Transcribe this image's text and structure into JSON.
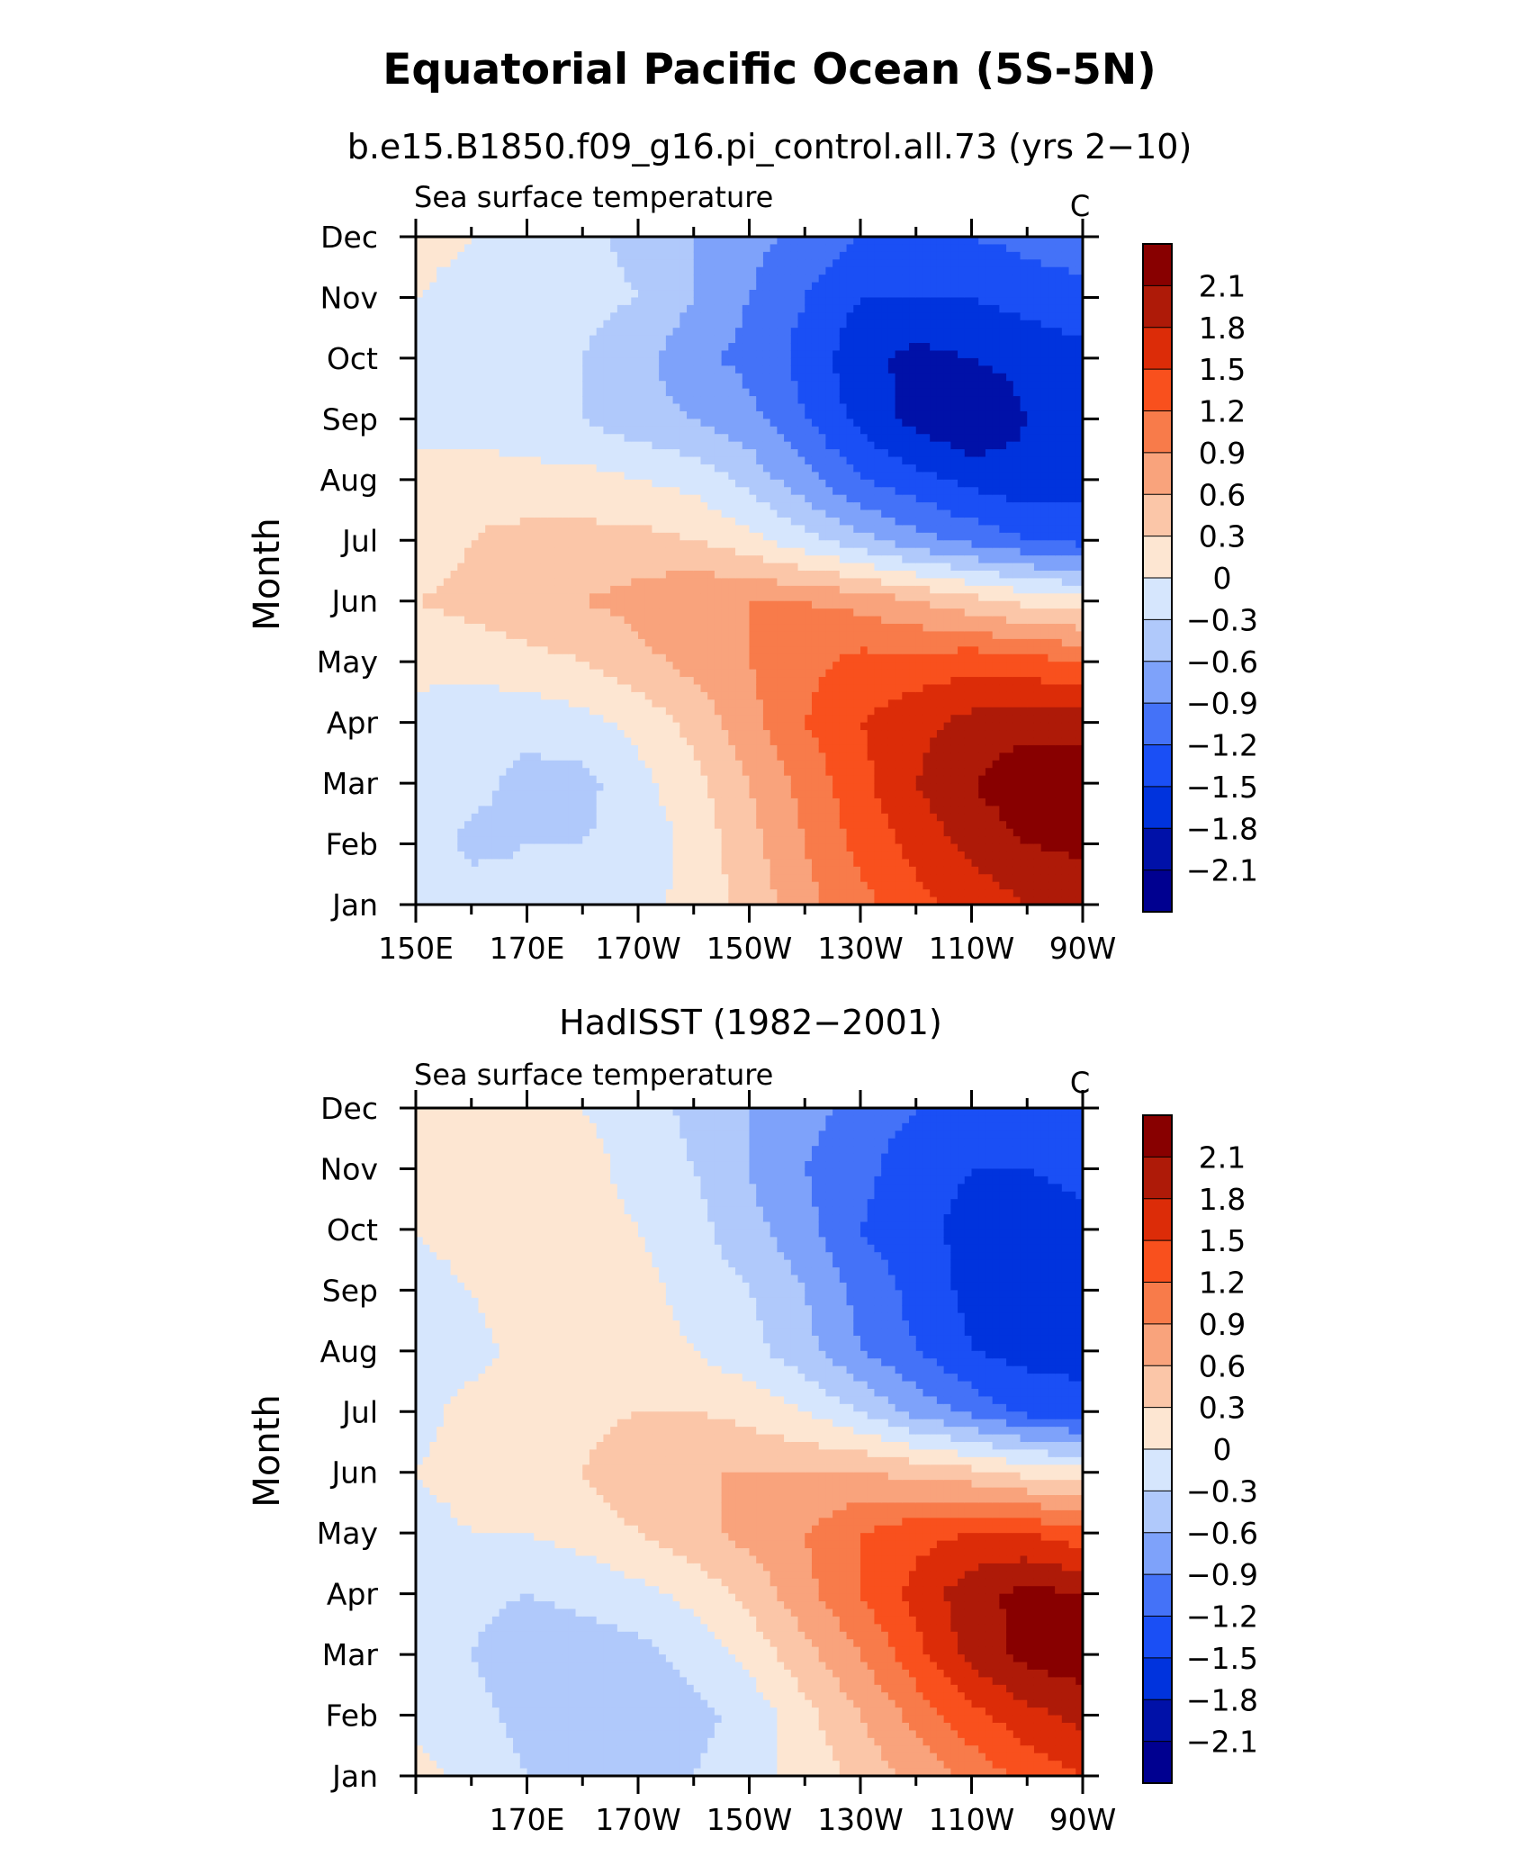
{
  "page": {
    "title": "Equatorial Pacific Ocean (5S-5N)"
  },
  "chart_data": [
    {
      "type": "heatmap",
      "title": "b.e15.B1850.f09_g16.pi_control.all.73 (yrs 2−10)",
      "left_string": "Sea surface temperature",
      "right_string": "C",
      "ylabel": "Month",
      "xlabel": "",
      "x_tick_labels": [
        "150E",
        "170E",
        "170W",
        "150W",
        "130W",
        "110W",
        "90W"
      ],
      "x_tick_values": [
        150,
        170,
        190,
        210,
        230,
        250,
        270
      ],
      "xlim": [
        150,
        270
      ],
      "y_tick_labels": [
        "Jan",
        "Feb",
        "Mar",
        "Apr",
        "May",
        "Jun",
        "Jul",
        "Aug",
        "Sep",
        "Oct",
        "Nov",
        "Dec"
      ],
      "ylim": [
        1,
        12
      ],
      "colorbar_levels": [
        "2.1",
        "1.8",
        "1.5",
        "1.2",
        "0.9",
        "0.6",
        "0.3",
        "0",
        "−0.3",
        "−0.6",
        "−0.9",
        "−1.2",
        "−1.5",
        "−1.8",
        "−2.1"
      ],
      "x_grid": [
        150,
        160,
        170,
        180,
        190,
        200,
        210,
        220,
        230,
        240,
        250,
        260,
        270
      ],
      "values": [
        [
          0.0,
          -0.1,
          -0.2,
          -0.2,
          -0.1,
          0.1,
          0.4,
          0.8,
          1.1,
          1.4,
          1.6,
          1.8,
          1.8
        ],
        [
          -0.1,
          -0.4,
          -0.3,
          -0.3,
          -0.2,
          0.1,
          0.5,
          0.9,
          1.3,
          1.6,
          1.9,
          2.1,
          2.2
        ],
        [
          -0.1,
          -0.2,
          -0.4,
          -0.4,
          -0.1,
          0.2,
          0.6,
          1.0,
          1.4,
          1.8,
          2.1,
          2.3,
          2.3
        ],
        [
          -0.1,
          -0.2,
          -0.2,
          -0.1,
          0.1,
          0.4,
          0.8,
          1.2,
          1.5,
          1.7,
          1.9,
          2.0,
          2.0
        ],
        [
          0.1,
          0.1,
          0.2,
          0.3,
          0.5,
          0.7,
          0.9,
          1.1,
          1.3,
          1.3,
          1.4,
          1.3,
          1.2
        ],
        [
          0.3,
          0.4,
          0.5,
          0.6,
          0.7,
          0.9,
          0.9,
          0.9,
          0.8,
          0.6,
          0.4,
          0.2,
          0.1
        ],
        [
          0.1,
          0.3,
          0.4,
          0.4,
          0.4,
          0.3,
          0.1,
          -0.2,
          -0.5,
          -0.8,
          -1.0,
          -1.2,
          -1.3
        ],
        [
          0.1,
          0.2,
          0.1,
          0.1,
          0.0,
          -0.1,
          -0.4,
          -0.8,
          -1.2,
          -1.4,
          -1.6,
          -1.7,
          -1.6
        ],
        [
          -0.1,
          -0.2,
          -0.2,
          -0.3,
          -0.5,
          -0.6,
          -0.8,
          -1.2,
          -1.6,
          -1.9,
          -2.1,
          -1.8,
          -1.7
        ],
        [
          -0.1,
          -0.2,
          -0.2,
          -0.3,
          -0.5,
          -0.8,
          -1.0,
          -1.3,
          -1.7,
          -1.9,
          -1.8,
          -1.7,
          -1.6
        ],
        [
          0.0,
          -0.1,
          -0.2,
          -0.2,
          -0.3,
          -0.6,
          -0.9,
          -1.2,
          -1.5,
          -1.5,
          -1.5,
          -1.4,
          -1.3
        ],
        [
          0.1,
          0.0,
          -0.1,
          -0.2,
          -0.4,
          -0.6,
          -0.8,
          -1.0,
          -1.2,
          -1.3,
          -1.2,
          -1.1,
          -1.0
        ]
      ]
    },
    {
      "type": "heatmap",
      "title": "HadISST (1982−2001)",
      "left_string": "Sea surface temperature",
      "right_string": "C",
      "ylabel": "Month",
      "xlabel": "",
      "x_tick_labels": [
        "170E",
        "170W",
        "150W",
        "130W",
        "110W",
        "90W"
      ],
      "x_tick_values": [
        170,
        190,
        210,
        230,
        250,
        270
      ],
      "xlim": [
        150,
        270
      ],
      "y_tick_labels": [
        "Jan",
        "Feb",
        "Mar",
        "Apr",
        "May",
        "Jun",
        "Jul",
        "Aug",
        "Sep",
        "Oct",
        "Nov",
        "Dec"
      ],
      "ylim": [
        1,
        12
      ],
      "colorbar_levels": [
        "2.1",
        "1.8",
        "1.5",
        "1.2",
        "0.9",
        "0.6",
        "0.3",
        "0",
        "−0.3",
        "−0.6",
        "−0.9",
        "−1.2",
        "−1.5",
        "−1.8",
        "−2.1"
      ],
      "x_grid": [
        150,
        160,
        170,
        180,
        190,
        200,
        210,
        220,
        230,
        240,
        250,
        260,
        270
      ],
      "values": [
        [
          0.1,
          -0.1,
          -0.3,
          -0.4,
          -0.4,
          -0.3,
          -0.1,
          0.1,
          0.4,
          0.7,
          1.0,
          1.3,
          1.5
        ],
        [
          -0.1,
          -0.2,
          -0.4,
          -0.5,
          -0.5,
          -0.4,
          -0.2,
          0.2,
          0.6,
          1.0,
          1.4,
          1.7,
          1.9
        ],
        [
          -0.1,
          -0.3,
          -0.5,
          -0.5,
          -0.4,
          -0.2,
          0.1,
          0.5,
          0.9,
          1.4,
          1.9,
          2.2,
          2.3
        ],
        [
          -0.1,
          -0.2,
          -0.3,
          -0.2,
          -0.1,
          0.1,
          0.4,
          0.8,
          1.2,
          1.6,
          2.0,
          2.2,
          2.1
        ],
        [
          -0.1,
          0.0,
          0.0,
          0.1,
          0.3,
          0.5,
          0.7,
          0.9,
          1.2,
          1.4,
          1.5,
          1.5,
          1.3
        ],
        [
          0.0,
          0.1,
          0.2,
          0.3,
          0.5,
          0.6,
          0.6,
          0.6,
          0.6,
          0.5,
          0.4,
          0.2,
          0.1
        ],
        [
          -0.1,
          0.1,
          0.2,
          0.2,
          0.3,
          0.3,
          0.2,
          0.0,
          -0.3,
          -0.7,
          -1.0,
          -1.3,
          -1.4
        ],
        [
          -0.2,
          -0.1,
          0.1,
          0.2,
          0.1,
          0.0,
          -0.2,
          -0.5,
          -0.9,
          -1.2,
          -1.5,
          -1.6,
          -1.6
        ],
        [
          -0.1,
          0.0,
          0.2,
          0.3,
          0.1,
          -0.1,
          -0.3,
          -0.6,
          -1.0,
          -1.3,
          -1.6,
          -1.7,
          -1.7
        ],
        [
          0.0,
          0.1,
          0.1,
          0.1,
          0.0,
          -0.2,
          -0.5,
          -0.8,
          -1.2,
          -1.4,
          -1.6,
          -1.7,
          -1.6
        ],
        [
          0.1,
          0.1,
          0.1,
          0.1,
          -0.1,
          -0.3,
          -0.6,
          -0.9,
          -1.1,
          -1.4,
          -1.5,
          -1.5,
          -1.4
        ],
        [
          0.1,
          0.1,
          0.1,
          0.0,
          -0.1,
          -0.4,
          -0.6,
          -0.8,
          -1.0,
          -1.2,
          -1.3,
          -1.3,
          -1.2
        ]
      ]
    }
  ],
  "colors": {
    "scale": [
      "#000090",
      "#0011A8",
      "#0033DD",
      "#1A4FF5",
      "#4472F8",
      "#7EA2FA",
      "#B0C9FB",
      "#D6E6FD",
      "#FDE6D2",
      "#FBC6A8",
      "#F9A37C",
      "#F87B4A",
      "#F9501D",
      "#DC2C08",
      "#AE1A08",
      "#880000"
    ],
    "axis": "#000000"
  }
}
